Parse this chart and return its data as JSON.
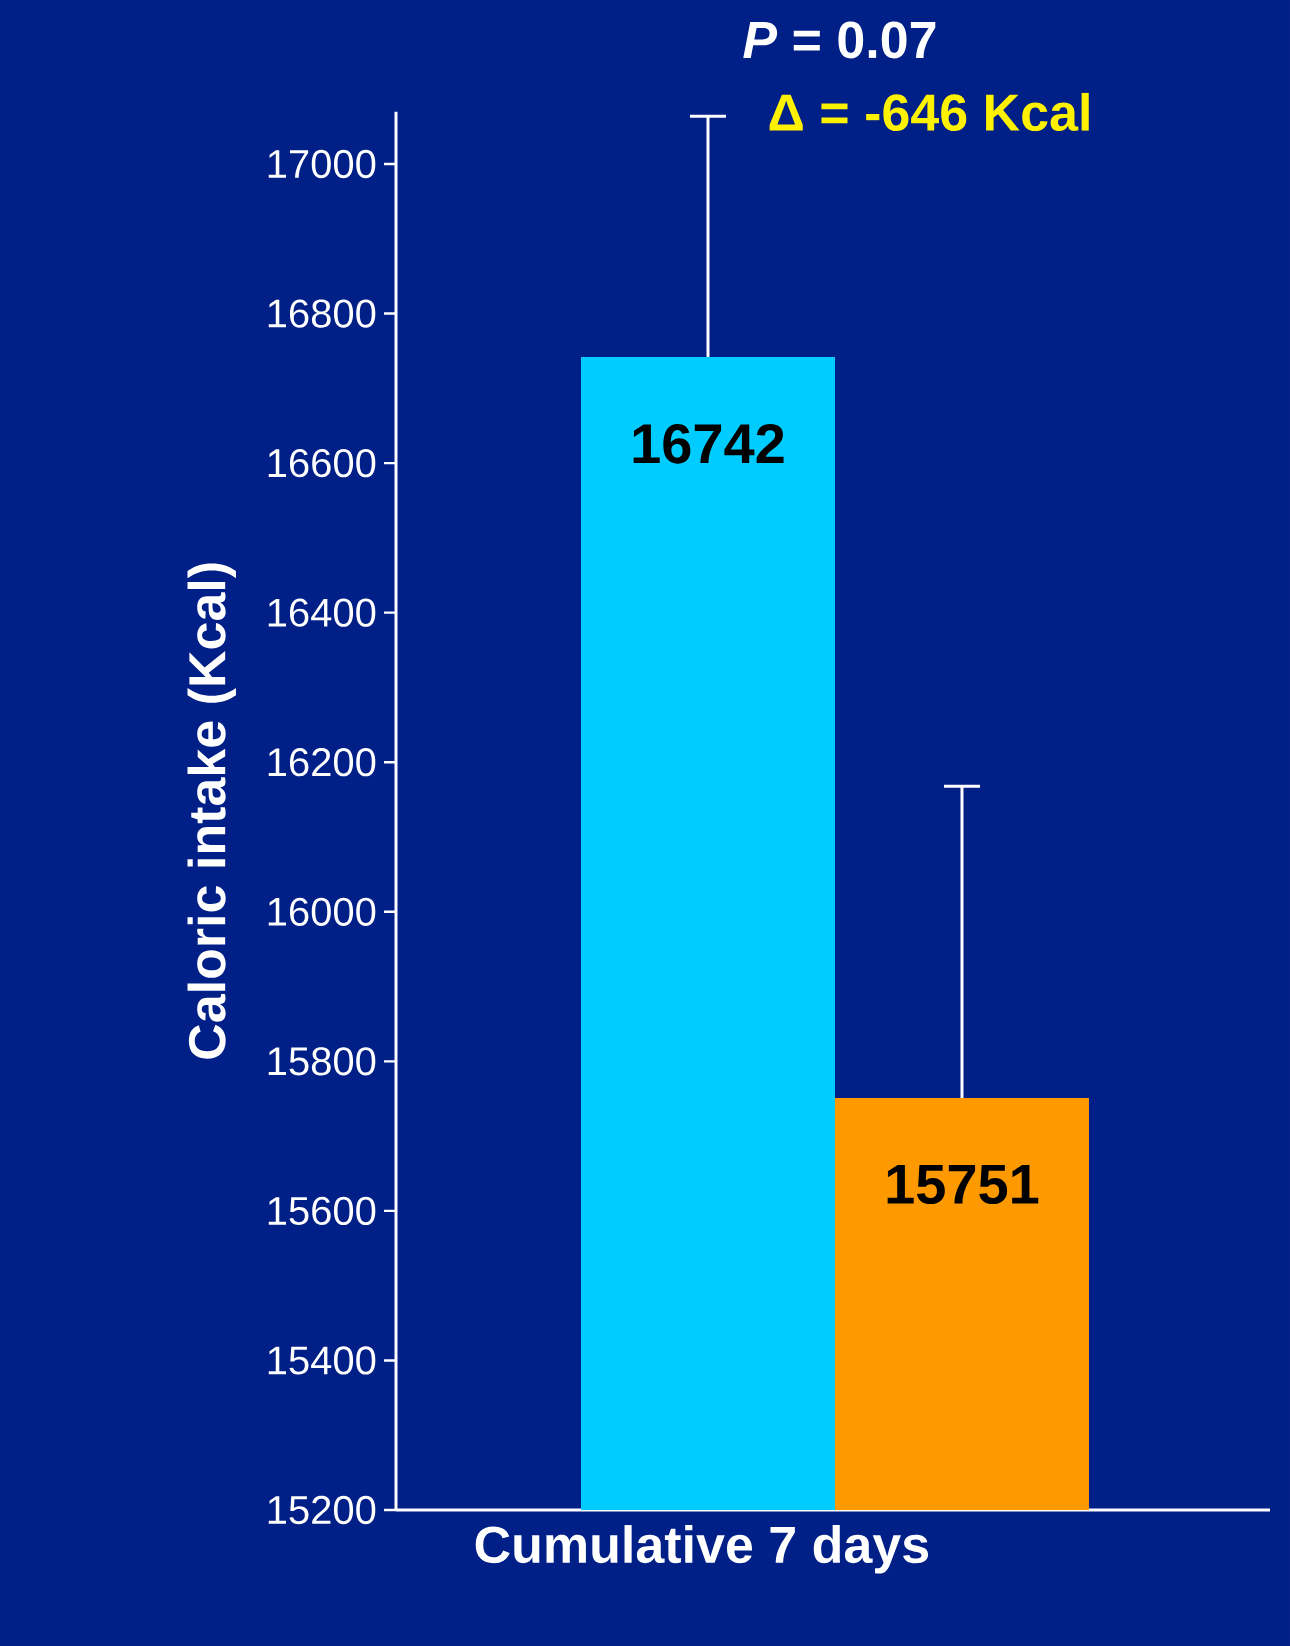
{
  "chart_data": {
    "type": "bar",
    "xlabel": "Cumulative 7 days",
    "ylabel": "Caloric intake (Kcal)",
    "categories": [
      null,
      null
    ],
    "values": [
      16742,
      15751
    ],
    "colors": [
      "#00ccff",
      "#ff9900"
    ],
    "errors": [
      [
        16742,
        17064
      ],
      [
        15751,
        16168
      ]
    ],
    "data_labels": true,
    "ylim": [
      15200,
      17070
    ],
    "yticks": [
      15200,
      15400,
      15600,
      15800,
      16000,
      16200,
      16400,
      16600,
      16800,
      17000
    ],
    "grid": false,
    "annotations": [
      "*P* = 0.07",
      "Δ = -646 Kcal"
    ]
  }
}
